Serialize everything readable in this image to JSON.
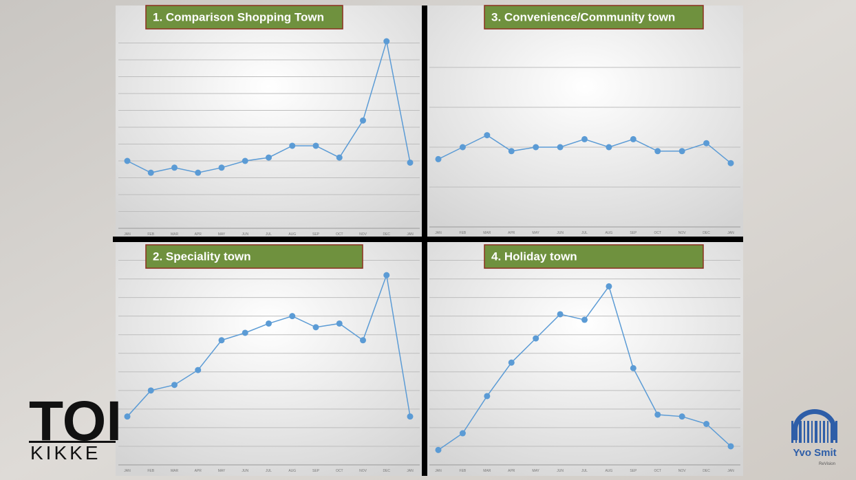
{
  "chart_data": [
    {
      "type": "line",
      "title": "1. Comparison Shopping Town",
      "categories": [
        "JAN",
        "FEB",
        "MAR",
        "APR",
        "MAY",
        "JUN",
        "JUL",
        "AUG",
        "SEP",
        "OCT",
        "NOV",
        "DEC",
        "JAN"
      ],
      "values": [
        4.0,
        3.3,
        3.6,
        3.3,
        3.6,
        4.0,
        4.2,
        4.9,
        4.9,
        4.2,
        6.4,
        11.1,
        3.9
      ],
      "color": "#5b9bd5",
      "ylim": [
        0,
        12
      ],
      "yticks": [
        0,
        1,
        2,
        3,
        4,
        5,
        6,
        7,
        8,
        9,
        10,
        11
      ],
      "grid": true
    },
    {
      "type": "line",
      "title": "2. Speciality town",
      "categories": [
        "JAN",
        "FEB",
        "MAR",
        "APR",
        "MAY",
        "JUN",
        "JUL",
        "AUG",
        "SEP",
        "OCT",
        "NOV",
        "DEC",
        "JAN"
      ],
      "values": [
        2.6,
        4.0,
        4.3,
        5.1,
        6.7,
        7.1,
        7.6,
        8.0,
        7.4,
        7.6,
        6.7,
        10.2,
        2.6
      ],
      "color": "#5b9bd5",
      "ylim": [
        0,
        11.5
      ],
      "yticks": [
        0,
        1,
        2,
        3,
        4,
        5,
        6,
        7,
        8,
        9,
        10,
        11
      ],
      "grid": true
    },
    {
      "type": "line",
      "title": "3. Convenience/Community town",
      "categories": [
        "JAN",
        "FEB",
        "MAR",
        "APR",
        "MAY",
        "JUN",
        "JUL",
        "AUG",
        "SEP",
        "OCT",
        "NOV",
        "DEC",
        "JAN"
      ],
      "values": [
        1.7,
        2.0,
        2.3,
        1.9,
        2.0,
        2.0,
        2.2,
        2.0,
        2.2,
        1.9,
        1.9,
        2.1,
        1.6
      ],
      "color": "#5b9bd5",
      "ylim": [
        0,
        5
      ],
      "yticks": [
        0,
        1,
        2,
        3,
        4
      ],
      "grid": true
    },
    {
      "type": "line",
      "title": "4. Holiday town",
      "categories": [
        "JAN",
        "FEB",
        "MAR",
        "APR",
        "MAY",
        "JUN",
        "JUL",
        "AUG",
        "SEP",
        "OCT",
        "NOV",
        "DEC",
        "JAN"
      ],
      "values": [
        0.8,
        1.7,
        3.7,
        5.5,
        6.8,
        8.1,
        7.8,
        9.6,
        5.2,
        2.7,
        2.6,
        2.2,
        1.0
      ],
      "color": "#5b9bd5",
      "ylim": [
        0,
        11.5
      ],
      "yticks": [
        0,
        1,
        2,
        3,
        4,
        5,
        6,
        7,
        8,
        9,
        10,
        11
      ],
      "grid": true
    }
  ],
  "logos": {
    "left_big": "TOI",
    "left_small": "KIKKE",
    "right_name": "Yvo Smit",
    "right_sub": "ReVision"
  }
}
